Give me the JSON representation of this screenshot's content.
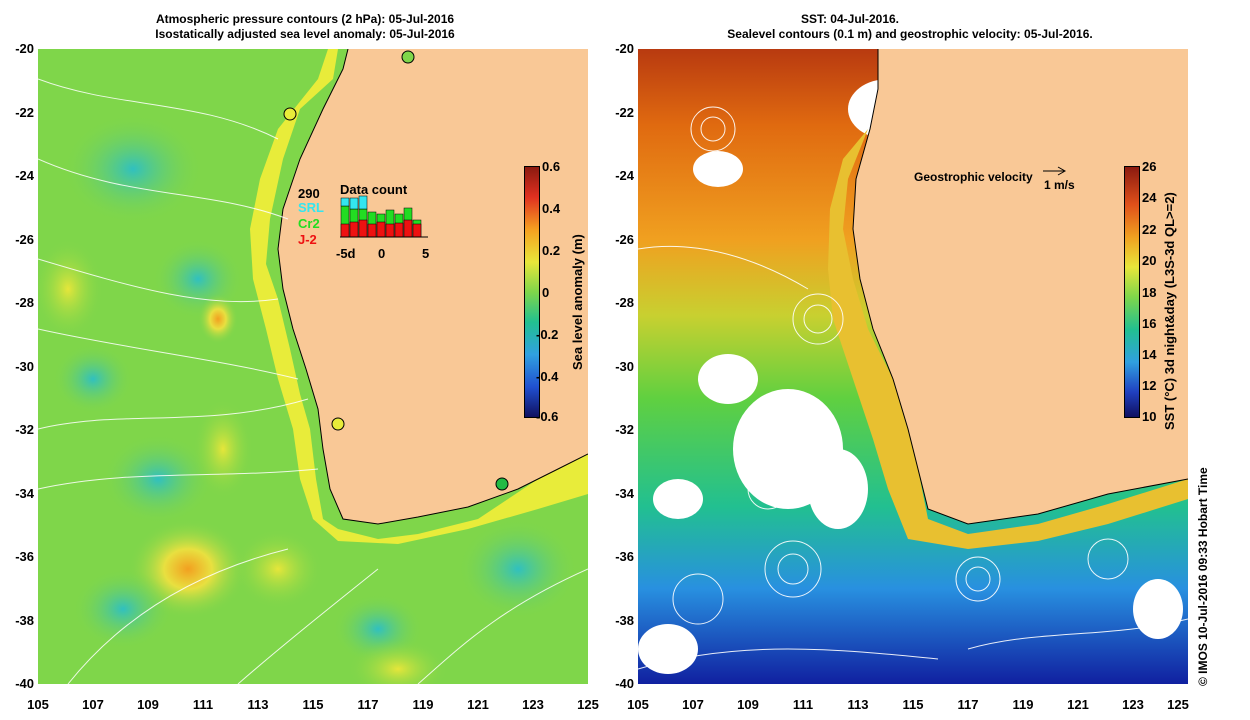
{
  "left_panel": {
    "title_line1": "Atmospheric pressure contours (2 hPa): 05-Jul-2016",
    "title_line2": "Isostatically adjusted sea level anomaly: 05-Jul-2016",
    "colorbar_label": "Sea level anomaly (m)",
    "colorbar_ticks": [
      "0.6",
      "0.4",
      "0.2",
      "0",
      "-0.2",
      "-0.4",
      "-0.6"
    ],
    "data_count": {
      "total": "290",
      "title": "Data count",
      "sources": [
        {
          "name": "SRL",
          "color": "#33e6f0"
        },
        {
          "name": "Cr2",
          "color": "#22dd22"
        },
        {
          "name": "J-2",
          "color": "#ee1111"
        }
      ],
      "xtick_labels": [
        "-5d",
        "0",
        "5"
      ]
    }
  },
  "right_panel": {
    "title_line1": "SST: 04-Jul-2016.",
    "title_line2": "Sealevel contours (0.1 m) and geostrophic velocity: 05-Jul-2016.",
    "velocity_legend": "Geostrophic velocity",
    "velocity_scale": "1 m/s",
    "colorbar_label": "SST (°C) 3d night&day (L3S-3d QL>=2)",
    "colorbar_ticks": [
      "26",
      "24",
      "22",
      "20",
      "18",
      "16",
      "14",
      "12",
      "10"
    ]
  },
  "axes": {
    "y_ticks": [
      "-20",
      "-22",
      "-24",
      "-26",
      "-28",
      "-30",
      "-32",
      "-34",
      "-36",
      "-38",
      "-40"
    ],
    "x_ticks": [
      "105",
      "107",
      "109",
      "111",
      "113",
      "115",
      "117",
      "119",
      "121",
      "123",
      "125"
    ]
  },
  "credit": "© IMOS 10-Jul-2016 09:33 Hobart Time",
  "colors": {
    "land": "#f9c896",
    "sea_level_mid": "#7fd64a",
    "coast_band": "#e8ec3a"
  }
}
